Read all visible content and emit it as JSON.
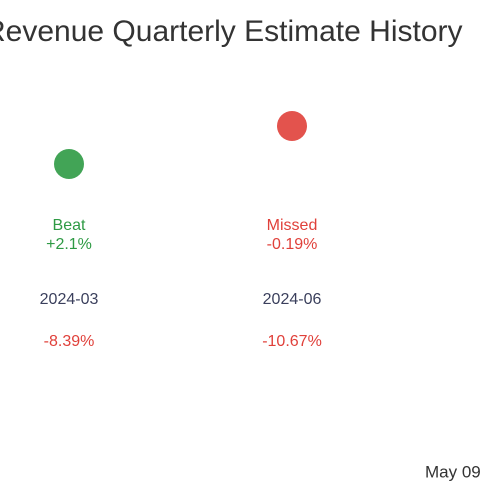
{
  "title": "Revenue Quarterly Estimate History",
  "columns": [
    {
      "result": "Beat",
      "surprise": "+2.1%",
      "period": "2024-03",
      "change": "-8.39%",
      "color": "#2e9a44"
    },
    {
      "result": "Missed",
      "surprise": "-0.19%",
      "period": "2024-06",
      "change": "-10.67%",
      "color": "#e0403a"
    }
  ],
  "footer": "May 09"
}
